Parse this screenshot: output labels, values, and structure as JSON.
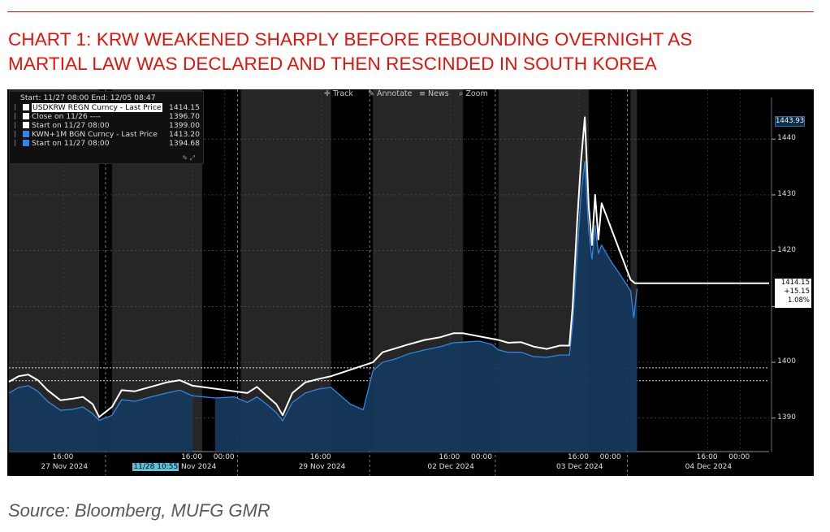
{
  "title_lines": [
    "CHART 1: KRW WEAKENED SHARPLY BEFORE REBOUNDING OVERNIGHT AS",
    "MARTIAL LAW WAS DECLARED AND THEN RESCINDED IN SOUTH KOREA"
  ],
  "source": "Source: Bloomberg, MUFG GMR",
  "toolbar": {
    "track": "Track",
    "annotate": "Annotate",
    "news": "News",
    "zoom": "Zoom"
  },
  "legend": {
    "header": "Start: 11/27 08:00 End: 12/05 08:47",
    "rows": [
      {
        "label": "USDKRW REGN Curncy - Last Price",
        "value": "1414.15",
        "color": "#ffffff",
        "highlight": true
      },
      {
        "label": "Close on 11/26 ----",
        "value": "1396.70",
        "color": "#ffffff",
        "highlight": false
      },
      {
        "label": "Start on 11/27 08:00",
        "value": "1399.00",
        "color": "#ffffff",
        "highlight": false
      },
      {
        "label": "KWN+1M BGN Curncy - Last Price",
        "value": "1413.20",
        "color": "#2f86e8",
        "highlight": false
      },
      {
        "label": "Start on 11/27 08:00",
        "value": "1394.68",
        "color": "#2f86e8",
        "highlight": false
      }
    ]
  },
  "last_price_box": {
    "price": "1414.15",
    "change": "+15.15",
    "pct": "1.08%"
  },
  "max_label": "1443.93",
  "cursor_label": "11/28 10:55",
  "chart_data": {
    "type": "line",
    "title": "CHART 1: KRW WEAKENED SHARPLY BEFORE REBOUNDING OVERNIGHT AS MARTIAL LAW WAS DECLARED AND THEN RESCINDED IN SOUTH KOREA",
    "ylim": [
      1384,
      1446
    ],
    "y_ticks": [
      1390,
      1400,
      1410,
      1420,
      1430,
      1440
    ],
    "x_tick_labels": [
      {
        "label": "16:00",
        "x": 0.85
      },
      {
        "label": "16:00",
        "x": 2.85
      },
      {
        "label": "00:00",
        "x": 3.35
      },
      {
        "label": "16:00",
        "x": 4.85
      },
      {
        "label": "16:00",
        "x": 6.85
      },
      {
        "label": "00:00",
        "x": 7.35
      },
      {
        "label": "16:00",
        "x": 8.85
      },
      {
        "label": "00:00",
        "x": 9.35
      },
      {
        "label": "16:00",
        "x": 10.85
      },
      {
        "label": "00:00",
        "x": 11.35
      }
    ],
    "x_day_labels": [
      {
        "label": "27 Nov 2024",
        "x": 0.85
      },
      {
        "label": "Nov 2024",
        "x": 2.9
      },
      {
        "label": "29 Nov 2024",
        "x": 4.85
      },
      {
        "label": "02 Dec 2024",
        "x": 6.85
      },
      {
        "label": "03 Dec 2024",
        "x": 8.85
      },
      {
        "label": "04 Dec 2024",
        "x": 10.85
      }
    ],
    "x_range": [
      0,
      11.8
    ],
    "reference_lines": [
      {
        "name": "Close on 11/26",
        "value": 1396.7
      },
      {
        "name": "Start on 11/27 08:00",
        "value": 1399.0
      }
    ],
    "shaded_sessions": [
      [
        0,
        1.4
      ],
      [
        1.6,
        3.0
      ],
      [
        3.6,
        5.0
      ],
      [
        5.65,
        7.05
      ],
      [
        7.6,
        9.0
      ],
      [
        9.65,
        9.75
      ]
    ],
    "series": [
      {
        "name": "USDKRW REGN Curncy - Last Price",
        "color": "#ffffff",
        "points": [
          [
            0.0,
            1396.5
          ],
          [
            0.15,
            1397.5
          ],
          [
            0.3,
            1397.8
          ],
          [
            0.45,
            1396.8
          ],
          [
            0.6,
            1395.0
          ],
          [
            0.8,
            1393.2
          ],
          [
            1.0,
            1393.5
          ],
          [
            1.15,
            1393.8
          ],
          [
            1.3,
            1392.5
          ],
          [
            1.4,
            1390.2
          ],
          [
            1.6,
            1392.0
          ],
          [
            1.75,
            1395.0
          ],
          [
            1.95,
            1394.8
          ],
          [
            2.2,
            1395.6
          ],
          [
            2.45,
            1396.4
          ],
          [
            2.65,
            1396.8
          ],
          [
            2.85,
            1395.8
          ],
          [
            3.7,
            1394.5
          ],
          [
            3.85,
            1395.6
          ],
          [
            4.0,
            1394.0
          ],
          [
            4.15,
            1392.5
          ],
          [
            4.25,
            1390.5
          ],
          [
            4.4,
            1394.5
          ],
          [
            4.6,
            1396.4
          ],
          [
            4.8,
            1397.0
          ],
          [
            5.0,
            1397.5
          ],
          [
            5.65,
            1400.0
          ],
          [
            5.8,
            1401.8
          ],
          [
            6.0,
            1402.5
          ],
          [
            6.2,
            1403.2
          ],
          [
            6.45,
            1404.0
          ],
          [
            6.7,
            1404.5
          ],
          [
            6.9,
            1405.2
          ],
          [
            7.05,
            1405.2
          ],
          [
            7.6,
            1404.0
          ],
          [
            7.75,
            1403.5
          ],
          [
            7.95,
            1403.6
          ],
          [
            8.15,
            1402.8
          ],
          [
            8.35,
            1402.4
          ],
          [
            8.55,
            1403.0
          ],
          [
            8.7,
            1403.0
          ],
          [
            8.75,
            1410.0
          ],
          [
            8.82,
            1425.0
          ],
          [
            8.88,
            1436.0
          ],
          [
            8.94,
            1443.9
          ],
          [
            9.0,
            1428.0
          ],
          [
            9.05,
            1421.0
          ],
          [
            9.1,
            1430.0
          ],
          [
            9.15,
            1422.0
          ],
          [
            9.2,
            1428.5
          ],
          [
            9.65,
            1414.8
          ],
          [
            9.72,
            1414.15
          ],
          [
            11.8,
            1414.15
          ]
        ]
      },
      {
        "name": "KWN+1M BGN Curncy - Last Price",
        "color": "#2f86e8",
        "points": [
          [
            0.0,
            1394.5
          ],
          [
            0.15,
            1395.5
          ],
          [
            0.3,
            1395.8
          ],
          [
            0.45,
            1394.8
          ],
          [
            0.6,
            1393.0
          ],
          [
            0.8,
            1391.4
          ],
          [
            1.0,
            1391.6
          ],
          [
            1.15,
            1392.0
          ],
          [
            1.3,
            1390.8
          ],
          [
            1.4,
            1389.6
          ],
          [
            1.6,
            1390.5
          ],
          [
            1.75,
            1393.3
          ],
          [
            1.95,
            1393.0
          ],
          [
            2.2,
            1393.8
          ],
          [
            2.45,
            1394.5
          ],
          [
            2.65,
            1395.0
          ],
          [
            2.85,
            1394.0
          ],
          [
            3.2,
            1393.6
          ],
          [
            3.5,
            1393.8
          ],
          [
            3.7,
            1392.8
          ],
          [
            3.85,
            1393.8
          ],
          [
            4.0,
            1392.5
          ],
          [
            4.15,
            1391.0
          ],
          [
            4.25,
            1389.5
          ],
          [
            4.4,
            1392.8
          ],
          [
            4.6,
            1394.5
          ],
          [
            4.8,
            1395.2
          ],
          [
            5.0,
            1395.5
          ],
          [
            5.3,
            1392.5
          ],
          [
            5.5,
            1391.5
          ],
          [
            5.65,
            1398.5
          ],
          [
            5.8,
            1400.0
          ],
          [
            6.0,
            1400.6
          ],
          [
            6.2,
            1401.5
          ],
          [
            6.45,
            1402.2
          ],
          [
            6.7,
            1402.8
          ],
          [
            6.9,
            1403.5
          ],
          [
            7.05,
            1403.6
          ],
          [
            7.3,
            1403.8
          ],
          [
            7.5,
            1403.2
          ],
          [
            7.6,
            1402.2
          ],
          [
            7.75,
            1401.8
          ],
          [
            7.95,
            1401.8
          ],
          [
            8.15,
            1401.0
          ],
          [
            8.35,
            1400.9
          ],
          [
            8.55,
            1401.3
          ],
          [
            8.7,
            1401.3
          ],
          [
            8.75,
            1406.5
          ],
          [
            8.82,
            1419.0
          ],
          [
            8.88,
            1430.0
          ],
          [
            8.94,
            1436.0
          ],
          [
            9.0,
            1423.5
          ],
          [
            9.05,
            1418.5
          ],
          [
            9.1,
            1424.5
          ],
          [
            9.15,
            1419.5
          ],
          [
            9.2,
            1421.0
          ],
          [
            9.35,
            1418.0
          ],
          [
            9.5,
            1415.5
          ],
          [
            9.65,
            1412.8
          ],
          [
            9.7,
            1408.0
          ],
          [
            9.75,
            1413.2
          ]
        ]
      }
    ]
  }
}
